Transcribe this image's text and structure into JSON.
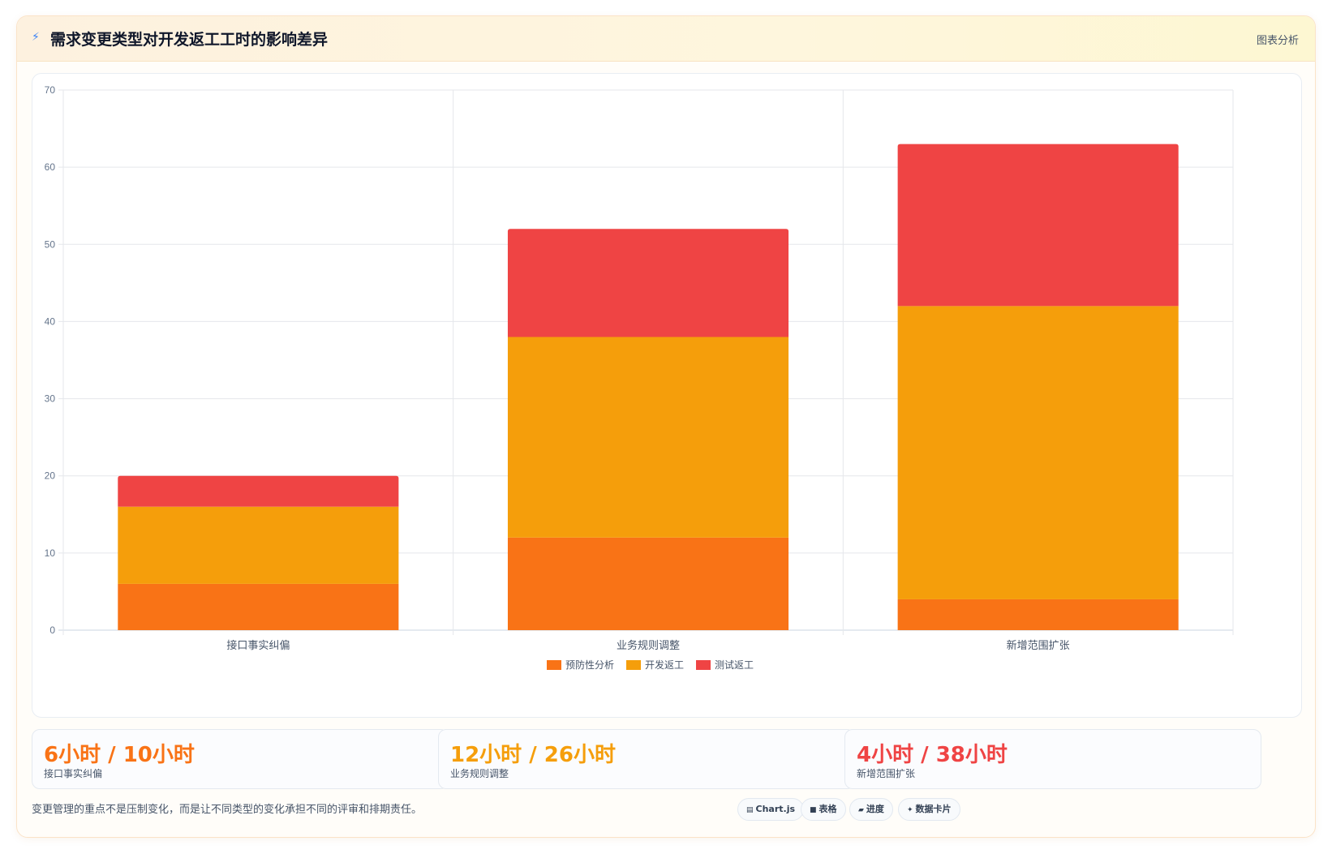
{
  "header": {
    "icon": "lightning-icon",
    "title": "需求变更类型对开发返工工时的影响差异",
    "tag": "图表分析"
  },
  "chart_data": {
    "type": "bar",
    "stacked": true,
    "categories": [
      "接口事实纠偏",
      "业务规则调整",
      "新增范围扩张"
    ],
    "series": [
      {
        "name": "预防性分析",
        "values": [
          6,
          12,
          4
        ],
        "color": "#f97316"
      },
      {
        "name": "开发返工",
        "values": [
          10,
          26,
          38
        ],
        "color": "#f59e0b"
      },
      {
        "name": "测试返工",
        "values": [
          4,
          14,
          21
        ],
        "color": "#ef4444"
      }
    ],
    "ylim": [
      0,
      70
    ],
    "yticks": [
      0,
      10,
      20,
      30,
      40,
      50,
      60,
      70
    ],
    "grid": true,
    "legend": "bottom"
  },
  "stats": [
    {
      "value": "6小时 / 10小时",
      "label": "接口事实纠偏",
      "color": "#f97316"
    },
    {
      "value": "12小时 / 26小时",
      "label": "业务规则调整",
      "color": "#f59e0b"
    },
    {
      "value": "4小时 / 38小时",
      "label": "新增范围扩张",
      "color": "#ef4444"
    }
  ],
  "note": "变更管理的重点不是压制变化，而是让不同类型的变化承担不同的评审和排期责任。",
  "pills": [
    {
      "icon": "chart-icon",
      "label": "Chart.js"
    },
    {
      "icon": "table-icon",
      "label": "表格"
    },
    {
      "icon": "progress-icon",
      "label": "进度"
    },
    {
      "icon": "sparkle-icon",
      "label": "数据卡片"
    }
  ]
}
